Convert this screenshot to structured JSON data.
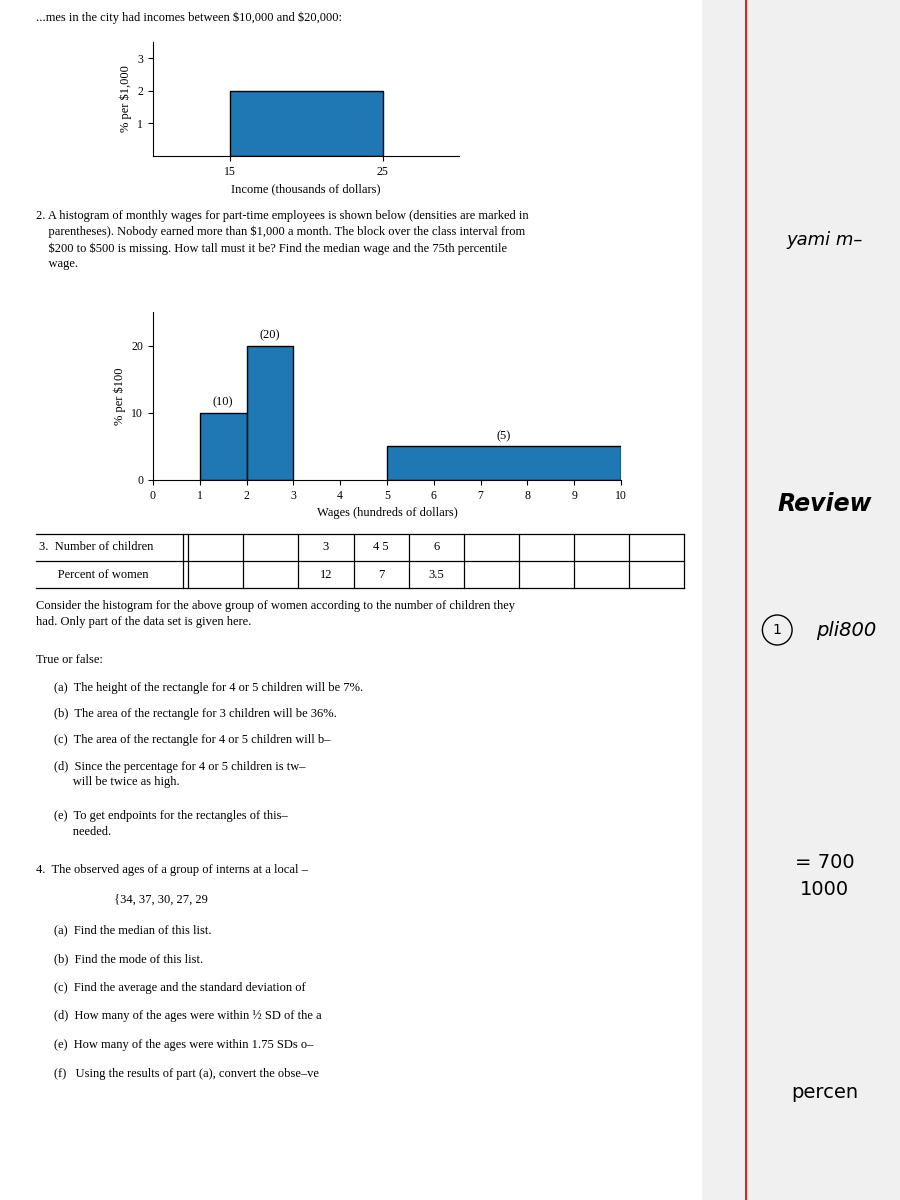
{
  "chart_data": [
    {
      "type": "histogram",
      "xlabel": "Income (thousands of dollars)",
      "ylabel": "% per $1,000",
      "bins": [
        15,
        25
      ],
      "counts": [
        2
      ],
      "xlim": [
        10,
        30
      ],
      "ylim": [
        0,
        3.5
      ],
      "xticks": [
        15,
        25
      ],
      "yticks": [
        1,
        2,
        3
      ]
    },
    {
      "type": "histogram",
      "xlabel": "Wages (hundreds of dollars)",
      "ylabel": "% per $100",
      "bins": [
        1,
        2,
        3,
        5,
        10
      ],
      "counts": [
        10,
        20,
        null,
        5
      ],
      "data_labels": true,
      "value_labels": [
        "(10)",
        "(20)",
        null,
        "(5)"
      ],
      "xlim": [
        0,
        10
      ],
      "ylim": [
        0,
        25
      ],
      "xticks": [
        0,
        1,
        2,
        3,
        4,
        5,
        6,
        7,
        8,
        9,
        10
      ],
      "yticks": [
        0,
        10,
        20
      ]
    },
    {
      "type": "table",
      "prefix": "3.",
      "rows": [
        {
          "label": "Number of children",
          "cells": [
            null,
            null,
            "3",
            "4 5",
            "6",
            null,
            null,
            null,
            null
          ]
        },
        {
          "label": "Percent of women",
          "cells": [
            null,
            null,
            "12",
            "7",
            "3.5",
            null,
            null,
            null,
            null
          ]
        }
      ]
    }
  ],
  "annotations": [
    "...mes in the city had incomes between $10,000 and $20,000:",
    "2. A histogram of monthly wages for part-time employees is shown below (densities are marked in\n    parentheses). Nobody earned more than $1,000 a month. The block over the class interval from\n    $200 to $500 is missing. How tall must it be? Find the median wage and the 75th percentile\n    wage.",
    "Consider the histogram for the above group of women according to the number of children they\nhad. Only part of the data set is given here.",
    "True or false:",
    "(a)  The height of the rectangle for 4 or 5 children will be 7%.",
    "(b)  The area of the rectangle for 3 children will be 36%.",
    "(c)  The area of the rectangle for 4 or 5 children will b–",
    "(d)  Since the percentage for 4 or 5 children is tw–\n      will be twice as high.",
    "(e)  To get endpoints for the rectangles of this–\n      needed.",
    "4.  The observed ages of a group of interns at a local –",
    "                         {34, 37, 30, 27, 29",
    "(a)  Find the median of this list.",
    "(b)  Find the mode of this list.",
    "(c)  Find the average and the standard deviation of",
    "(d)  How many of the ages were within ½ SD of the a",
    "(e)  How many of the ages were within 1.75 SDs o–",
    "(f)   Using the results of part (a), convert the obse–ve"
  ],
  "margin_notes": [
    "yami m–",
    "Review",
    "1",
    "pli800",
    "= 700\n1000",
    "percen"
  ]
}
